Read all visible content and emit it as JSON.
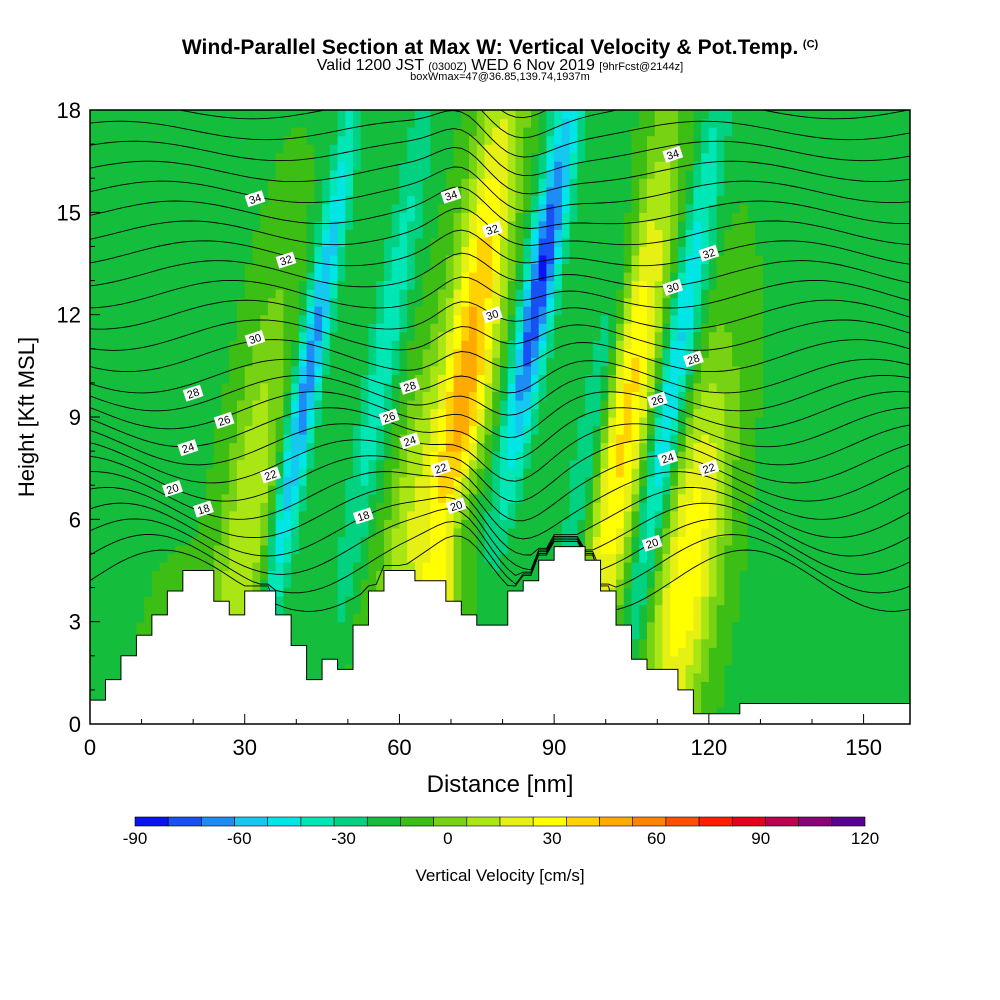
{
  "header": {
    "title": "Wind-Parallel Section at Max W: Vertical Velocity & Pot.Temp.",
    "title_suffix": "(C)",
    "subtitle_main_a": "Valid 1200 JST",
    "subtitle_small_a": "(0300Z)",
    "subtitle_main_b": "WED 6 Nov 2019",
    "subtitle_small_b": "[9hrFcst@2144z]",
    "box_line": "boxWmax=47@36.85,139.74,1937m"
  },
  "chart_data": {
    "type": "heatmap",
    "title": "Wind-Parallel Section at Max W: Vertical Velocity & Pot.Temp.",
    "xlabel": "Distance [nm]",
    "ylabel": "Height [Kft MSL]",
    "xlim": [
      0,
      159
    ],
    "ylim": [
      0,
      18
    ],
    "x_ticks": [
      0,
      30,
      60,
      90,
      120,
      150
    ],
    "x_tick_labels": [
      "0",
      "30",
      "60",
      "90",
      "120",
      "150"
    ],
    "y_ticks": [
      0,
      3,
      6,
      9,
      12,
      15,
      18
    ],
    "y_tick_labels": [
      "0",
      "3",
      "6",
      "9",
      "12",
      "15",
      "18"
    ],
    "colorbar": {
      "label": "Vertical Velocity [cm/s]",
      "tick_values": [
        -90,
        -60,
        -30,
        0,
        30,
        60,
        90,
        120
      ],
      "tick_labels": [
        "-90",
        "-60",
        "-30",
        "0",
        "30",
        "60",
        "90",
        "120"
      ],
      "levels": [
        -90,
        -80,
        -70,
        -60,
        -50,
        -40,
        -30,
        -20,
        -10,
        0,
        10,
        20,
        30,
        40,
        50,
        60,
        70,
        80,
        90,
        100,
        110,
        120
      ],
      "colors": [
        "#0a14f0",
        "#1850f5",
        "#1e8cf5",
        "#14c8f0",
        "#00e6e6",
        "#00e6b4",
        "#00d282",
        "#14be3c",
        "#3cbe14",
        "#78d214",
        "#aae614",
        "#e6f014",
        "#ffff00",
        "#ffd200",
        "#ffaa00",
        "#ff8200",
        "#ff5000",
        "#ff1e00",
        "#e6001e",
        "#be0050",
        "#8c0078",
        "#5a0096"
      ]
    },
    "terrain_kft": [
      [
        0,
        0.7
      ],
      [
        3,
        0.7
      ],
      [
        3,
        1.3
      ],
      [
        6,
        1.3
      ],
      [
        6,
        2.0
      ],
      [
        9,
        2.0
      ],
      [
        9,
        2.6
      ],
      [
        12,
        2.6
      ],
      [
        12,
        3.2
      ],
      [
        15,
        3.2
      ],
      [
        15,
        3.9
      ],
      [
        18,
        3.9
      ],
      [
        18,
        4.5
      ],
      [
        24,
        4.5
      ],
      [
        24,
        3.6
      ],
      [
        27,
        3.6
      ],
      [
        27,
        3.2
      ],
      [
        30,
        3.2
      ],
      [
        30,
        3.9
      ],
      [
        36,
        3.9
      ],
      [
        36,
        3.2
      ],
      [
        39,
        3.2
      ],
      [
        39,
        2.3
      ],
      [
        42,
        2.3
      ],
      [
        42,
        1.3
      ],
      [
        45,
        1.3
      ],
      [
        45,
        1.9
      ],
      [
        48,
        1.9
      ],
      [
        48,
        1.6
      ],
      [
        51,
        1.6
      ],
      [
        51,
        2.9
      ],
      [
        54,
        2.9
      ],
      [
        54,
        3.9
      ],
      [
        57,
        3.9
      ],
      [
        57,
        4.5
      ],
      [
        63,
        4.5
      ],
      [
        63,
        4.2
      ],
      [
        69,
        4.2
      ],
      [
        69,
        3.6
      ],
      [
        72,
        3.6
      ],
      [
        72,
        3.2
      ],
      [
        75,
        3.2
      ],
      [
        75,
        2.9
      ],
      [
        81,
        2.9
      ],
      [
        81,
        3.9
      ],
      [
        84,
        3.9
      ],
      [
        84,
        4.2
      ],
      [
        87,
        4.2
      ],
      [
        87,
        4.8
      ],
      [
        90,
        4.8
      ],
      [
        90,
        5.2
      ],
      [
        96,
        5.2
      ],
      [
        96,
        4.8
      ],
      [
        99,
        4.8
      ],
      [
        99,
        3.9
      ],
      [
        102,
        3.9
      ],
      [
        102,
        2.9
      ],
      [
        105,
        2.9
      ],
      [
        105,
        1.9
      ],
      [
        108,
        1.9
      ],
      [
        108,
        1.6
      ],
      [
        114,
        1.6
      ],
      [
        114,
        1.0
      ],
      [
        117,
        1.0
      ],
      [
        117,
        0.3
      ],
      [
        126,
        0.3
      ],
      [
        126,
        0.6
      ],
      [
        159,
        0.6
      ]
    ],
    "theta_contour_labels": [
      {
        "text": "34",
        "x": 32,
        "y": 15.4
      },
      {
        "text": "32",
        "x": 38,
        "y": 13.6
      },
      {
        "text": "30",
        "x": 32,
        "y": 11.3
      },
      {
        "text": "28",
        "x": 20,
        "y": 9.7
      },
      {
        "text": "26",
        "x": 26,
        "y": 8.9
      },
      {
        "text": "24",
        "x": 19,
        "y": 8.1
      },
      {
        "text": "22",
        "x": 35,
        "y": 7.3
      },
      {
        "text": "20",
        "x": 16,
        "y": 6.9
      },
      {
        "text": "18",
        "x": 22,
        "y": 6.3
      },
      {
        "text": "34",
        "x": 70,
        "y": 15.5
      },
      {
        "text": "32",
        "x": 78,
        "y": 14.5
      },
      {
        "text": "30",
        "x": 78,
        "y": 12.0
      },
      {
        "text": "28",
        "x": 62,
        "y": 9.9
      },
      {
        "text": "26",
        "x": 58,
        "y": 9.0
      },
      {
        "text": "24",
        "x": 62,
        "y": 8.3
      },
      {
        "text": "22",
        "x": 68,
        "y": 7.5
      },
      {
        "text": "20",
        "x": 71,
        "y": 6.4
      },
      {
        "text": "18",
        "x": 53,
        "y": 6.1
      },
      {
        "text": "34",
        "x": 113,
        "y": 16.7
      },
      {
        "text": "32",
        "x": 120,
        "y": 13.8
      },
      {
        "text": "30",
        "x": 113,
        "y": 12.8
      },
      {
        "text": "28",
        "x": 117,
        "y": 10.7
      },
      {
        "text": "26",
        "x": 110,
        "y": 9.5
      },
      {
        "text": "24",
        "x": 112,
        "y": 7.8
      },
      {
        "text": "22",
        "x": 120,
        "y": 7.5
      },
      {
        "text": "20",
        "x": 109,
        "y": 5.3
      }
    ]
  }
}
